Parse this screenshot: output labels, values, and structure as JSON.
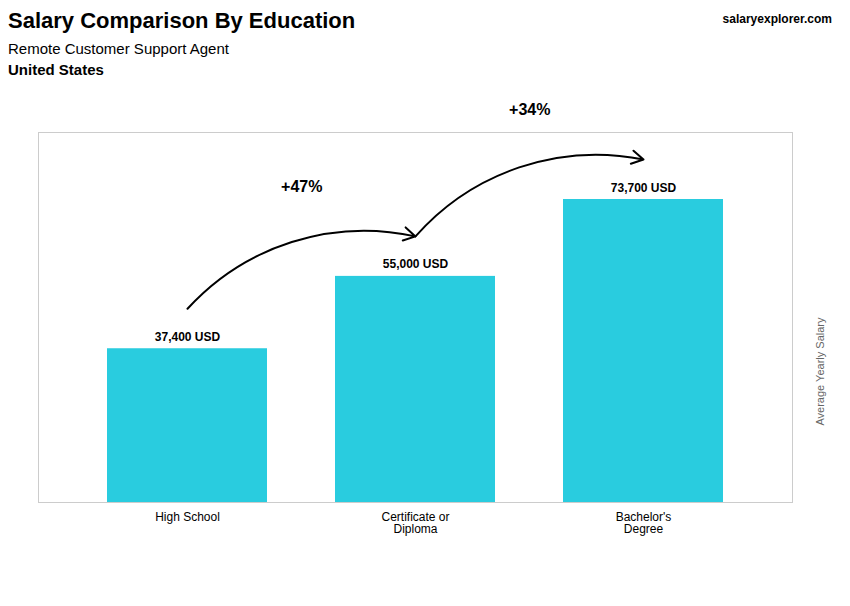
{
  "chart_data": {
    "type": "bar",
    "title": "Salary Comparison By Education",
    "subtitle": [
      "Remote Customer Support Agent",
      "United States"
    ],
    "ylabel": "Average Yearly Salary",
    "caption": "salaryexplorer.com",
    "categories": [
      "High School",
      "Certificate or\nDiploma",
      "Bachelor's\nDegree"
    ],
    "values": [
      37400,
      55000,
      73700
    ],
    "value_labels": [
      "37,400 USD",
      "55,000 USD",
      "73,700 USD"
    ],
    "data_labels": true,
    "color": "#29ccdf",
    "ylim": [
      0,
      90000
    ],
    "yticks": [],
    "tick_labels": "x",
    "grid": false,
    "annotations": [
      {
        "text": "+47%",
        "from": "High School",
        "to": "Certificate or\nDiploma"
      },
      {
        "text": "+34%",
        "from": "Certificate or\nDiploma",
        "to": "Bachelor's\nDegree"
      }
    ]
  }
}
